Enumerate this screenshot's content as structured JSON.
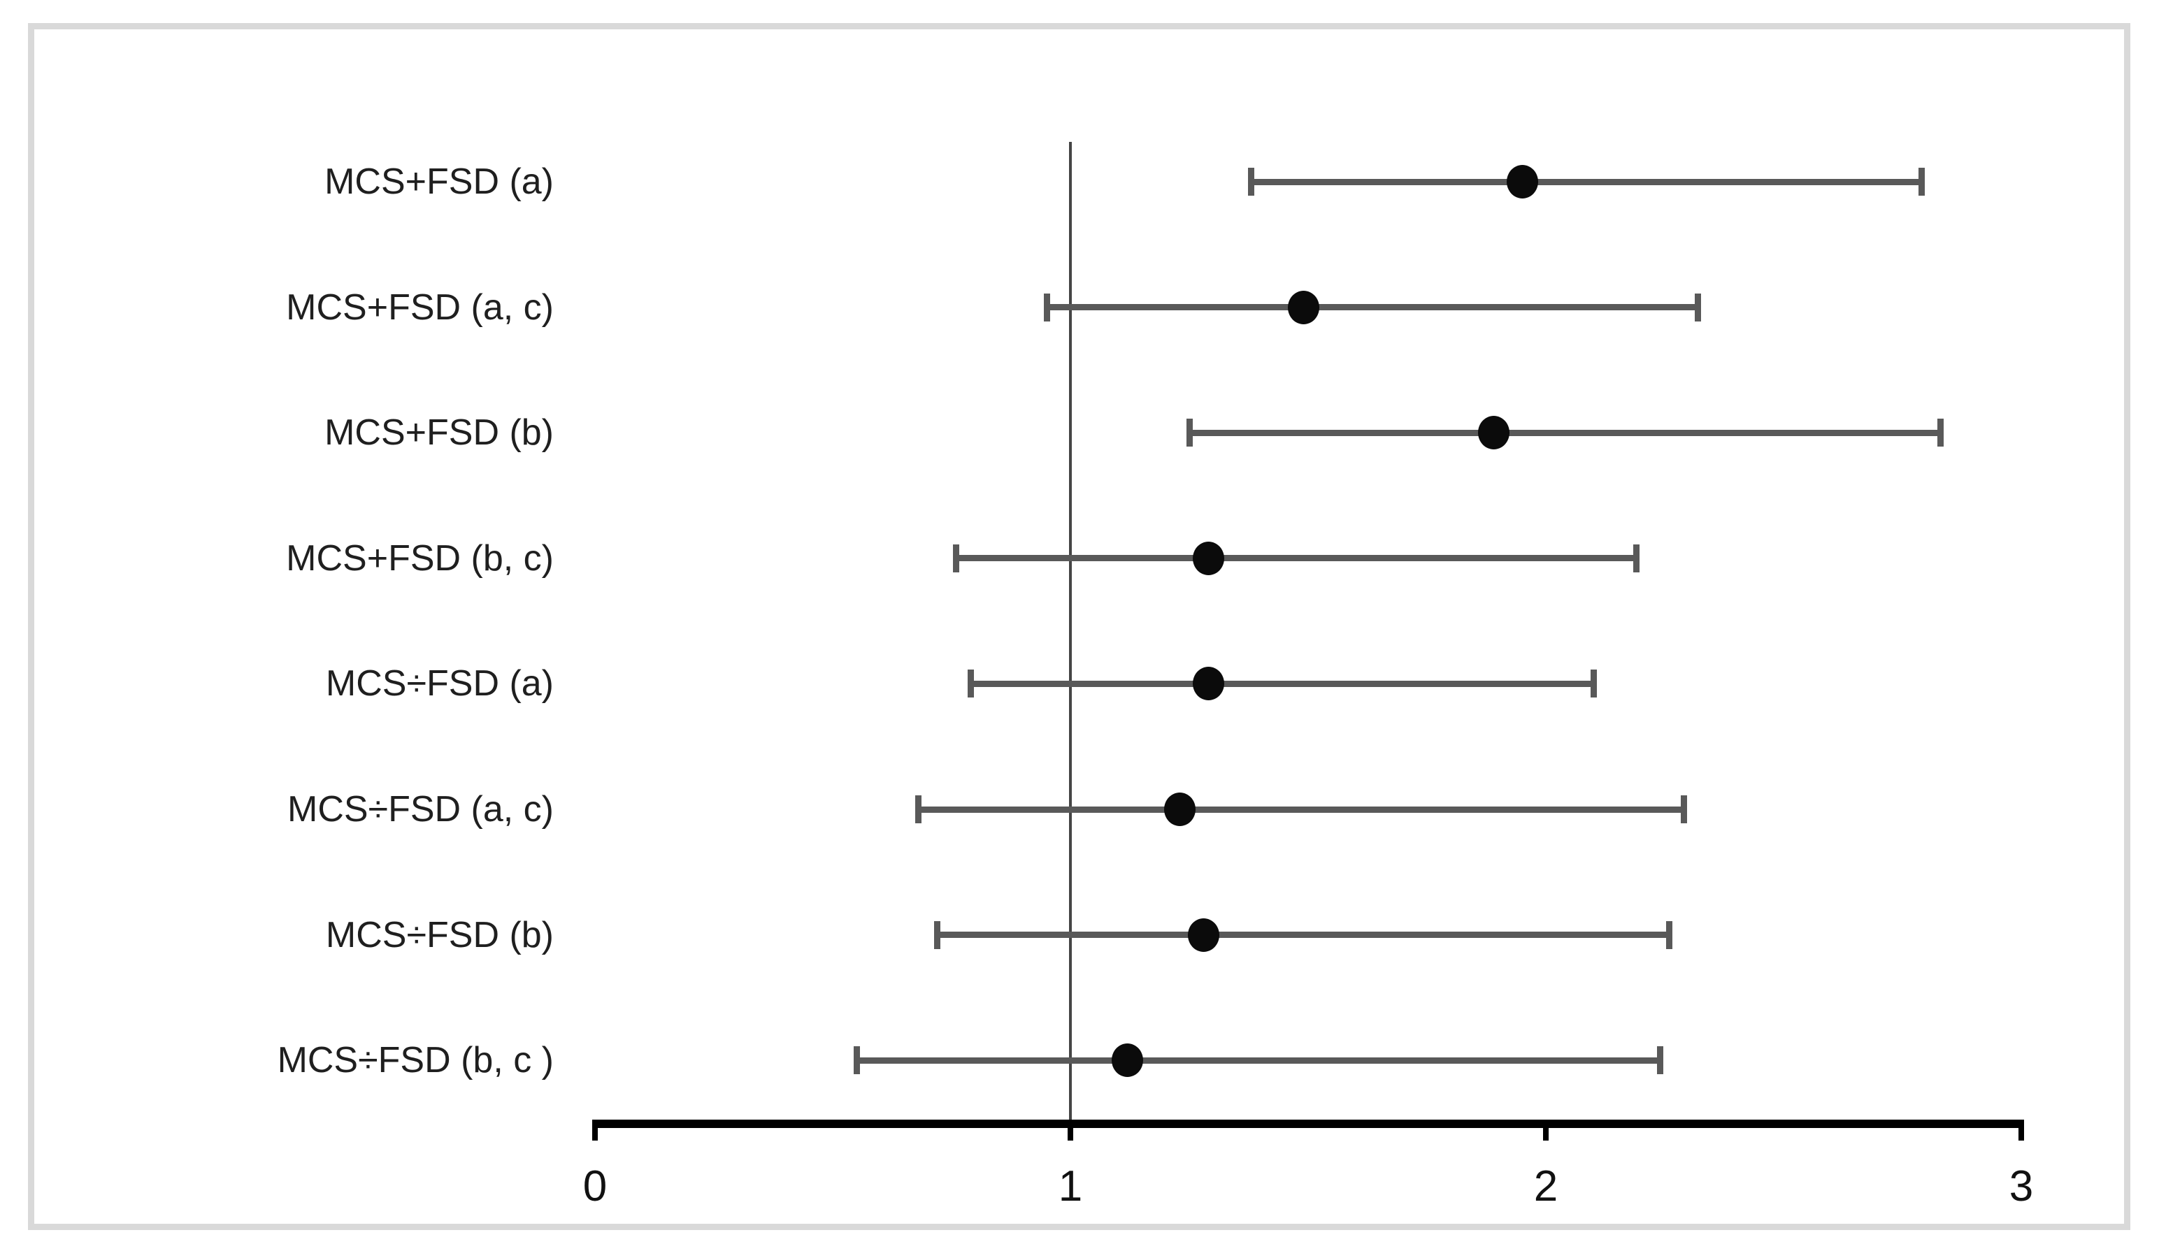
{
  "figure": {
    "background": "#ffffff",
    "border_color": "#d9d9d9"
  },
  "colors": {
    "whisker": "#595959",
    "cap": "#595959",
    "point": "#0b0b0b",
    "axis": "#000000",
    "tick": "#000000",
    "reference_line": "#454545",
    "label_text": "#1f1f1f",
    "tick_text": "#111111"
  },
  "chart_data": {
    "type": "scatter",
    "subtype": "forest-plot",
    "title": "",
    "xlabel": "",
    "ylabel": "",
    "grid": false,
    "legend": false,
    "x_axis": {
      "range": [
        0,
        3
      ],
      "ticks": [
        0,
        1,
        2,
        3
      ],
      "tick_labels": [
        "0",
        "1",
        "2",
        "3"
      ]
    },
    "reference_line_x": 1,
    "rows": [
      {
        "label": "MCS+FSD (a)",
        "estimate": 1.95,
        "ci_low": 1.38,
        "ci_high": 2.79
      },
      {
        "label": "MCS+FSD (a, c)",
        "estimate": 1.49,
        "ci_low": 0.95,
        "ci_high": 2.32
      },
      {
        "label": "MCS+FSD (b)",
        "estimate": 1.89,
        "ci_low": 1.25,
        "ci_high": 2.83
      },
      {
        "label": "MCS+FSD (b, c)",
        "estimate": 1.29,
        "ci_low": 0.76,
        "ci_high": 2.19
      },
      {
        "label": "MCS÷FSD (a)",
        "estimate": 1.29,
        "ci_low": 0.79,
        "ci_high": 2.1
      },
      {
        "label": "MCS÷FSD (a, c)",
        "estimate": 1.23,
        "ci_low": 0.68,
        "ci_high": 2.29
      },
      {
        "label": "MCS÷FSD (b)",
        "estimate": 1.28,
        "ci_low": 0.72,
        "ci_high": 2.26
      },
      {
        "label": "MCS÷FSD (b, c )",
        "estimate": 1.12,
        "ci_low": 0.55,
        "ci_high": 2.24
      }
    ]
  }
}
